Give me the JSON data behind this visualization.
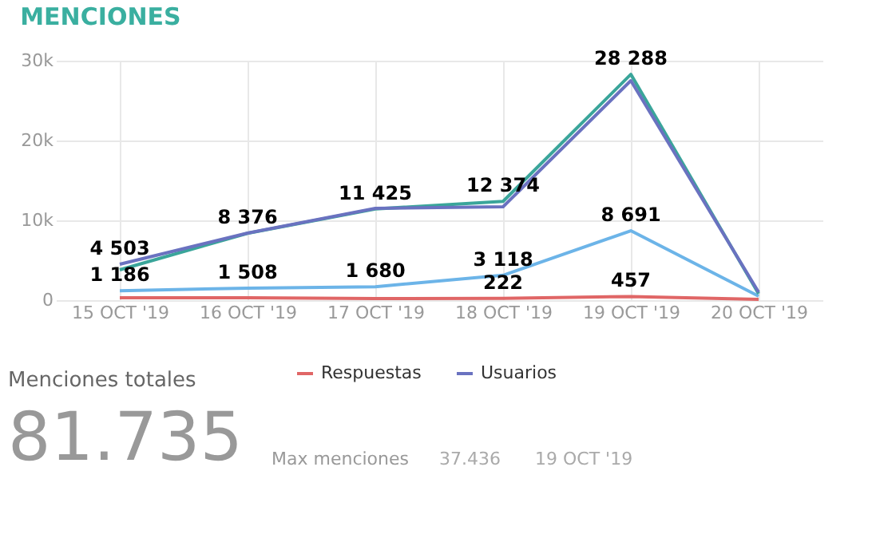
{
  "chart_data": {
    "type": "line",
    "title": "MENCIONES",
    "categories": [
      "15 OCT '19",
      "16 OCT '19",
      "17 OCT '19",
      "18 OCT '19",
      "19 OCT '19",
      "20 OCT '19"
    ],
    "series": [
      {
        "color": "#6cb4e8",
        "values": [
          1186,
          1508,
          1680,
          3118,
          8691,
          500
        ],
        "value_labels": [
          "1 186",
          "1 508",
          "1 680",
          "3 118",
          "8 691",
          null
        ]
      },
      {
        "color": "#3aa59a",
        "values": [
          3800,
          8376,
          11425,
          12374,
          28288,
          800
        ],
        "value_labels": [
          null,
          "8 376",
          "11 425",
          "12 374",
          "28 288",
          null
        ]
      },
      {
        "name": "Respuestas",
        "color": "#e06666",
        "values": [
          300,
          300,
          200,
          222,
          457,
          100
        ],
        "value_labels": [
          null,
          null,
          null,
          "222",
          "457",
          null
        ]
      },
      {
        "name": "Usuarios",
        "color": "#6a72c0",
        "values": [
          4503,
          8400,
          11500,
          11700,
          27500,
          1000
        ],
        "value_labels": [
          "4 503",
          null,
          null,
          null,
          null,
          null
        ]
      }
    ],
    "ylim": [
      0,
      30000
    ],
    "yticks": [
      0,
      {
        "value": 10000,
        "label": "10k"
      },
      {
        "value": 20000,
        "label": "20k"
      },
      {
        "value": 30000,
        "label": "30k"
      }
    ],
    "grid": true,
    "legend": "bottom right",
    "marker": "none",
    "line_style": "solid",
    "annotations": [
      "Menciones totales",
      "81.735",
      "Max menciones",
      "37.436",
      "19 OCT '19"
    ]
  }
}
